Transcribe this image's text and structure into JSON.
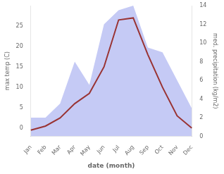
{
  "chart_data": {
    "type": "line",
    "xlabel": "date (month)",
    "ylabel": "max temp (C)",
    "y2label": "med. precipitation (kg/m2)",
    "categories": [
      "Jan",
      "Feb",
      "Mar",
      "Apr",
      "May",
      "Jun",
      "Jul",
      "Aug",
      "Sep",
      "Oct",
      "Nov",
      "Dec"
    ],
    "series": [
      {
        "type": "line",
        "color": "#993333",
        "values": [
          -0.5,
          0.5,
          2.5,
          6.0,
          8.5,
          15.0,
          26.5,
          27.0,
          18.0,
          10.0,
          3.0,
          0.0
        ]
      },
      {
        "type": "area",
        "axis": "y2",
        "color": "#c5caf5",
        "values": [
          2.0,
          2.0,
          3.5,
          8.0,
          5.5,
          12.0,
          13.5,
          14.0,
          9.5,
          9.0,
          6.0,
          3.0
        ]
      }
    ],
    "ylim": [
      -2,
      30
    ],
    "yticks": [
      0,
      5,
      10,
      15,
      20,
      25
    ],
    "y2lim": [
      0,
      14
    ],
    "y2ticks": [
      0,
      2,
      4,
      6,
      8,
      10,
      12,
      14
    ],
    "grid": false
  }
}
